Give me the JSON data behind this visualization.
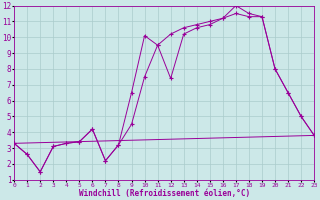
{
  "background_color": "#cce8e8",
  "grid_color": "#aacccc",
  "line_color": "#990099",
  "xlabel": "Windchill (Refroidissement éolien,°C)",
  "xlim": [
    0,
    23
  ],
  "ylim": [
    1,
    12
  ],
  "xtick_vals": [
    0,
    1,
    2,
    3,
    4,
    5,
    6,
    7,
    8,
    9,
    10,
    11,
    12,
    13,
    14,
    15,
    16,
    17,
    18,
    19,
    20,
    21,
    22,
    23
  ],
  "ytick_vals": [
    1,
    2,
    3,
    4,
    5,
    6,
    7,
    8,
    9,
    10,
    11,
    12
  ],
  "line1_x": [
    0,
    1,
    2,
    3,
    4,
    5,
    6,
    7,
    8,
    9,
    10,
    11,
    12,
    13,
    14,
    15,
    16,
    17,
    18,
    19,
    20,
    21,
    22,
    23
  ],
  "line1_y": [
    3.3,
    2.6,
    1.5,
    3.1,
    3.3,
    3.4,
    4.2,
    2.2,
    3.2,
    6.5,
    10.1,
    9.5,
    7.4,
    10.2,
    10.6,
    10.8,
    11.2,
    12.0,
    11.5,
    11.3,
    8.0,
    6.5,
    5.0,
    3.8
  ],
  "line2_x": [
    0,
    1,
    2,
    3,
    4,
    5,
    6,
    7,
    8,
    9,
    10,
    11,
    12,
    13,
    14,
    15,
    16,
    17,
    18,
    19,
    20,
    21,
    22,
    23
  ],
  "line2_y": [
    3.3,
    2.6,
    1.5,
    3.1,
    3.3,
    3.4,
    4.2,
    2.2,
    3.2,
    4.5,
    7.5,
    9.5,
    10.2,
    10.6,
    10.8,
    11.0,
    11.2,
    11.5,
    11.3,
    11.3,
    8.0,
    6.5,
    5.0,
    3.8
  ],
  "line3_x": [
    0,
    23
  ],
  "line3_y": [
    3.3,
    3.8
  ]
}
